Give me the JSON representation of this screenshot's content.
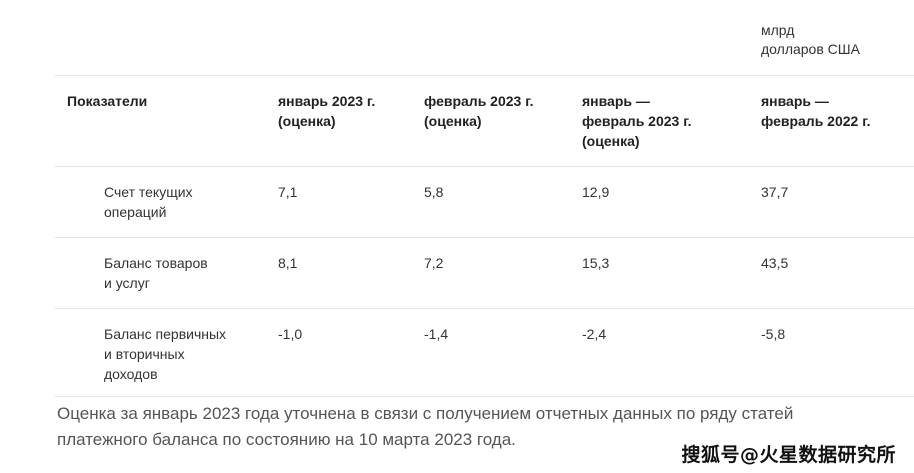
{
  "unit_label": "млрд\nдолларов США",
  "table": {
    "headers": [
      "Показатели",
      "январь 2023 г.\n(оценка)",
      "февраль 2023 г.\n(оценка)",
      "январь —\nфевраль 2023 г.\n(оценка)",
      "январь —\nфевраль 2022 г."
    ],
    "rows": [
      {
        "label": "Счет текущих\nопераций",
        "values": [
          "7,1",
          "5,8",
          "12,9",
          "37,7"
        ]
      },
      {
        "label": "Баланс товаров\nи услуг",
        "values": [
          "8,1",
          "7,2",
          "15,3",
          "43,5"
        ]
      },
      {
        "label": "Баланс первичных\nи вторичных\nдоходов",
        "values": [
          "-1,0",
          "-1,4",
          "-2,4",
          "-5,8"
        ]
      }
    ]
  },
  "note": "Оценка за январь 2023 года уточнена в связи с получением отчетных данных по ряду статей платежного баланса по состоянию на 10 марта 2023 года.",
  "watermark": "搜狐号@火星数据研究所"
}
